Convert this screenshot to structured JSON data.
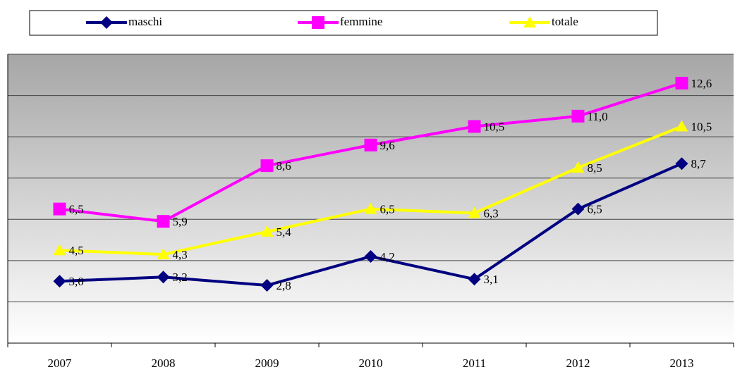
{
  "chart_data": {
    "type": "line",
    "categories": [
      "2007",
      "2008",
      "2009",
      "2010",
      "2011",
      "2012",
      "2013"
    ],
    "series": [
      {
        "name": "maschi",
        "color": "#000080",
        "marker": "diamond",
        "values": [
          3.0,
          3.2,
          2.8,
          4.2,
          3.1,
          6.5,
          8.7
        ],
        "value_labels": [
          "3,0",
          "3,2",
          "2,8",
          "4,2",
          "3,1",
          "6,5",
          "8,7"
        ]
      },
      {
        "name": "femmine",
        "color": "#ff00ff",
        "marker": "square",
        "values": [
          6.5,
          5.9,
          8.6,
          9.6,
          10.5,
          11.0,
          12.6
        ],
        "value_labels": [
          "6,5",
          "5,9",
          "8,6",
          "9,6",
          "10,5",
          "11,0",
          "12,6"
        ]
      },
      {
        "name": "totale",
        "color": "#ffff00",
        "marker": "triangle",
        "values": [
          4.5,
          4.3,
          5.4,
          6.5,
          6.3,
          8.5,
          10.5
        ],
        "value_labels": [
          "4,5",
          "4,3",
          "5,4",
          "6,5",
          "6,3",
          "8,5",
          "10,5"
        ]
      }
    ],
    "ylim": [
      0,
      14
    ],
    "yticks": [
      0,
      2,
      4,
      6,
      8,
      10,
      12,
      14
    ],
    "grid": true
  }
}
